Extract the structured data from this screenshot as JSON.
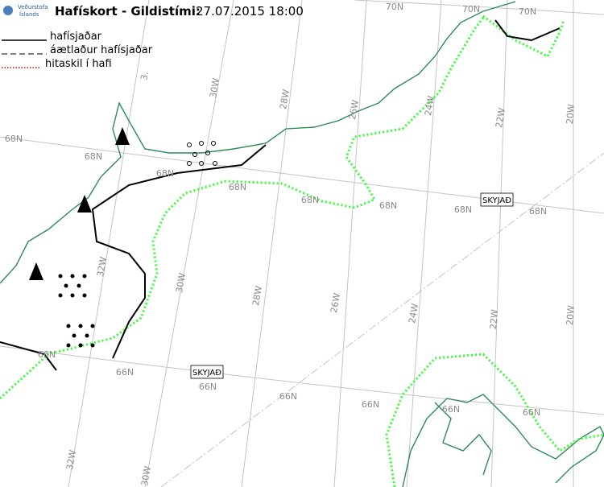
{
  "header": {
    "logo": [
      "Veðurstofa",
      "Íslands"
    ],
    "title": "Hafískort - Gildistími:",
    "valid_time": "27.07.2015 18:00"
  },
  "legend": [
    "hafísjaðar",
    "áætlaður hafísjaðar",
    "hitaskil í hafi"
  ],
  "map": {
    "grid_labels": [
      "70N",
      "70N",
      "70N",
      "3.",
      "30W",
      "28W",
      "26W",
      "24W",
      "22W",
      "20W",
      "68N",
      "68N",
      "68N",
      "68N",
      "68N",
      "68N",
      "68N",
      "68N",
      "32W",
      "30W",
      "28W",
      "26W",
      "24W",
      "22W",
      "20W",
      "66N",
      "66N",
      "66N",
      "66N",
      "66N",
      "66N",
      "66N",
      "32W",
      "30W"
    ],
    "station_labels": [
      "SKYJAÐ",
      "SKYJAÐ"
    ]
  }
}
